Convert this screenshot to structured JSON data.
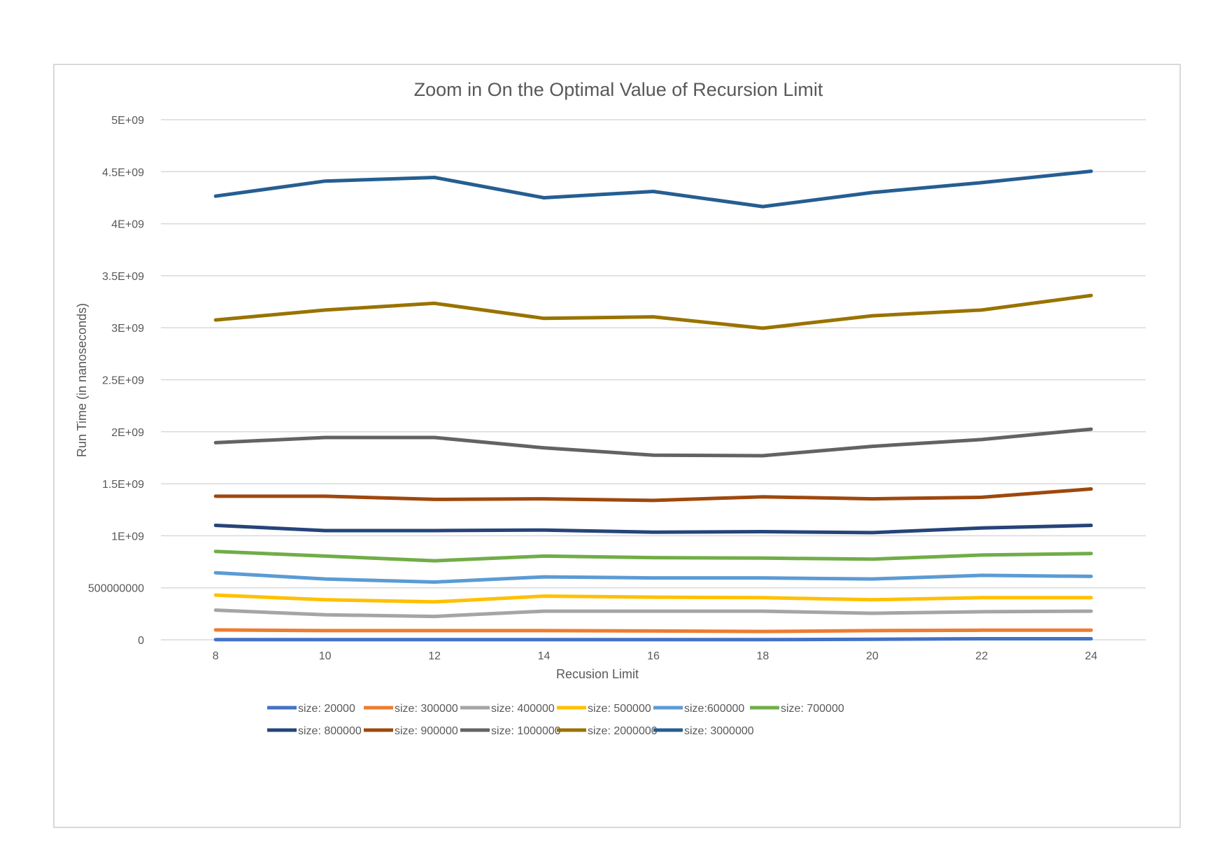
{
  "chart_data": {
    "type": "line",
    "title": "Zoom in On the Optimal Value of Recursion Limit",
    "xlabel": "Recusion Limit",
    "ylabel": "Run Time (in nanoseconds)",
    "x": [
      8,
      10,
      12,
      14,
      16,
      18,
      20,
      22,
      24
    ],
    "ylim": [
      0,
      5000000000
    ],
    "yticks": [
      {
        "value": 0,
        "label": "0"
      },
      {
        "value": 500000000,
        "label": "500000000"
      },
      {
        "value": 1000000000,
        "label": "1E+09"
      },
      {
        "value": 1500000000,
        "label": "1.5E+09"
      },
      {
        "value": 2000000000,
        "label": "2E+09"
      },
      {
        "value": 2500000000,
        "label": "2.5E+09"
      },
      {
        "value": 3000000000,
        "label": "3E+09"
      },
      {
        "value": 3500000000,
        "label": "3.5E+09"
      },
      {
        "value": 4000000000,
        "label": "4E+09"
      },
      {
        "value": 4500000000,
        "label": "4.5E+09"
      },
      {
        "value": 5000000000,
        "label": "5E+09"
      }
    ],
    "grid": true,
    "legend_position": "bottom",
    "series": [
      {
        "name": "size: 20000",
        "color": "#4472c4",
        "values": [
          2000000,
          2000000,
          2000000,
          2000000,
          2000000,
          2000000,
          5000000,
          10000000,
          10000000
        ]
      },
      {
        "name": "size: 300000",
        "color": "#ed7d31",
        "values": [
          95000000,
          88000000,
          88000000,
          88000000,
          85000000,
          80000000,
          88000000,
          92000000,
          92000000
        ]
      },
      {
        "name": "size: 400000",
        "color": "#a5a5a5",
        "values": [
          285000000,
          240000000,
          225000000,
          275000000,
          275000000,
          275000000,
          255000000,
          270000000,
          275000000
        ]
      },
      {
        "name": "size: 500000",
        "color": "#ffc000",
        "values": [
          430000000,
          385000000,
          365000000,
          420000000,
          410000000,
          405000000,
          385000000,
          405000000,
          405000000
        ]
      },
      {
        "name": "size:600000",
        "color": "#5b9bd5",
        "values": [
          645000000,
          585000000,
          555000000,
          605000000,
          595000000,
          595000000,
          585000000,
          620000000,
          610000000
        ]
      },
      {
        "name": "size: 700000",
        "color": "#70ad47",
        "values": [
          850000000,
          805000000,
          760000000,
          805000000,
          790000000,
          785000000,
          775000000,
          815000000,
          830000000
        ]
      },
      {
        "name": "size: 800000",
        "color": "#264478",
        "values": [
          1100000000,
          1050000000,
          1050000000,
          1055000000,
          1035000000,
          1040000000,
          1030000000,
          1075000000,
          1100000000
        ]
      },
      {
        "name": "size: 900000",
        "color": "#9e480e",
        "values": [
          1380000000,
          1380000000,
          1350000000,
          1355000000,
          1340000000,
          1375000000,
          1355000000,
          1370000000,
          1450000000
        ]
      },
      {
        "name": "size: 1000000",
        "color": "#636363",
        "values": [
          1895000000,
          1945000000,
          1945000000,
          1845000000,
          1775000000,
          1770000000,
          1860000000,
          1925000000,
          2025000000
        ]
      },
      {
        "name": "size: 2000000",
        "color": "#997300",
        "values": [
          3075000000,
          3170000000,
          3235000000,
          3090000000,
          3105000000,
          2995000000,
          3115000000,
          3170000000,
          3310000000
        ]
      },
      {
        "name": "size: 3000000",
        "color": "#255e91",
        "values": [
          4265000000,
          4410000000,
          4445000000,
          4250000000,
          4310000000,
          4165000000,
          4300000000,
          4395000000,
          4505000000
        ]
      }
    ]
  }
}
